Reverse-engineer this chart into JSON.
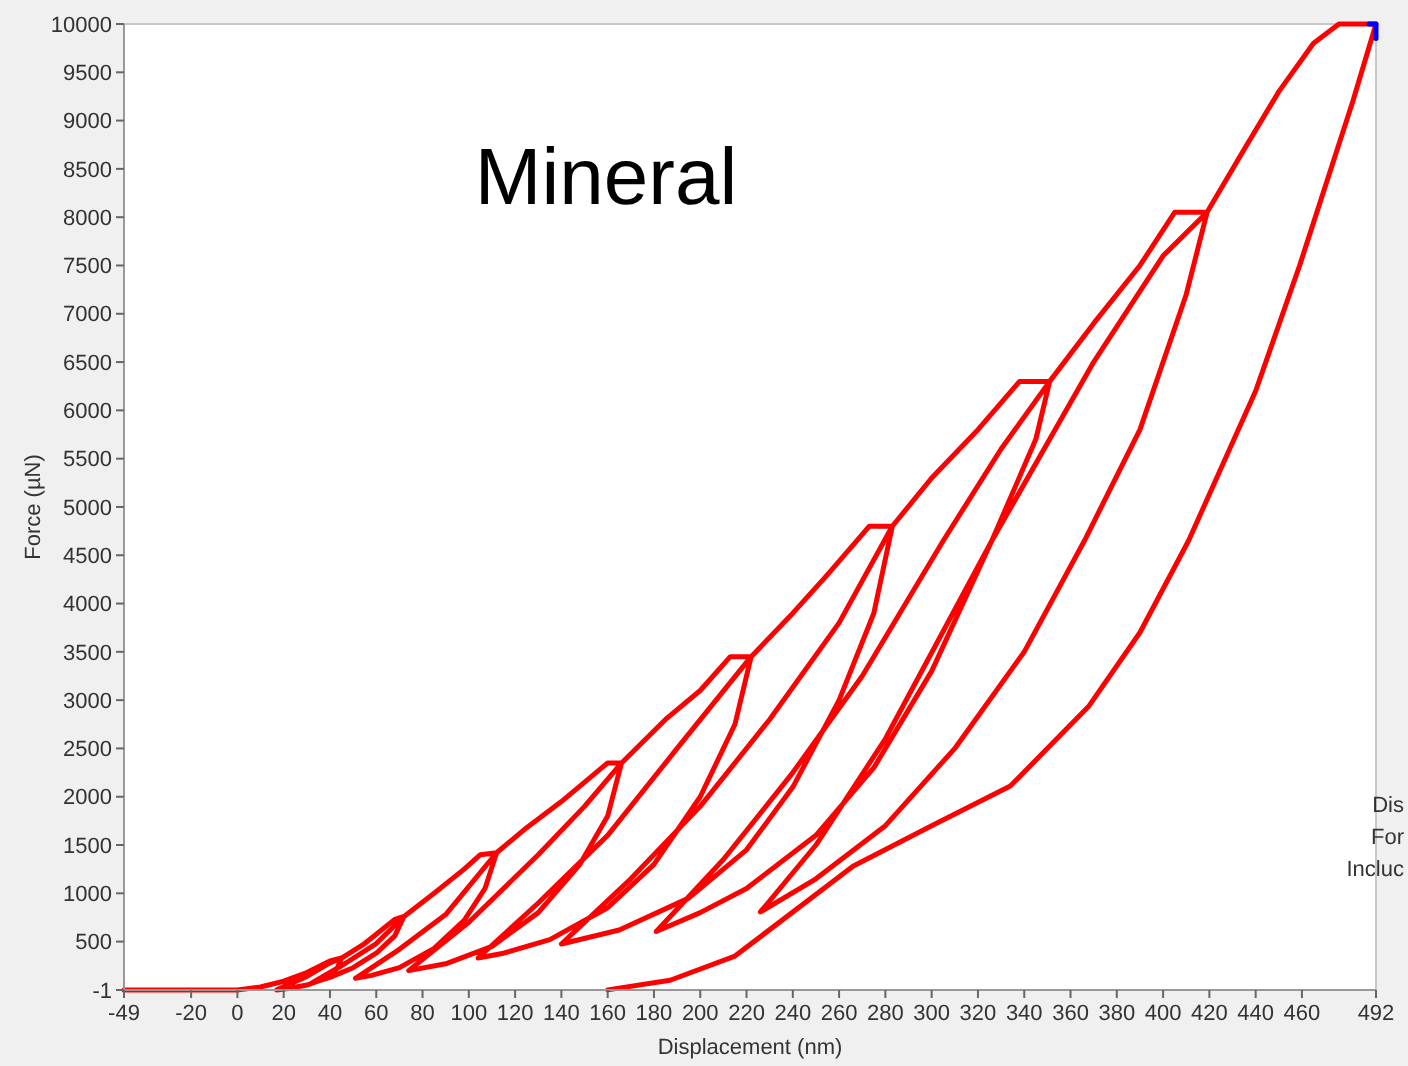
{
  "chart_data": {
    "type": "line",
    "title": "Mineral",
    "xlabel": "Displacement (nm)",
    "ylabel": "Force (µN)",
    "xlim": [
      -49,
      492
    ],
    "ylim": [
      -1,
      10000
    ],
    "xticks": [
      -49,
      -20,
      0,
      20,
      40,
      60,
      80,
      100,
      120,
      140,
      160,
      180,
      200,
      220,
      240,
      260,
      280,
      300,
      320,
      340,
      360,
      380,
      400,
      420,
      440,
      460,
      492
    ],
    "yticks": [
      -1,
      500,
      1000,
      1500,
      2000,
      2500,
      3000,
      3500,
      4000,
      4500,
      5000,
      5500,
      6000,
      6500,
      7000,
      7500,
      8000,
      8500,
      9000,
      9500,
      10000
    ],
    "grid": false,
    "marker": "none",
    "line_style": "solid",
    "annotations": [
      "Dis",
      "For",
      "Incluc"
    ],
    "series": [
      {
        "color": "#ff0000",
        "x": [
          -49,
          0,
          10,
          20,
          30,
          40,
          45,
          43,
          38,
          30,
          22,
          17,
          30,
          40,
          45,
          55,
          68,
          72,
          68,
          60,
          50,
          40,
          32,
          45,
          60,
          72,
          85,
          98,
          105,
          112,
          107,
          98,
          85,
          70,
          58,
          51,
          70,
          90,
          112,
          125,
          140,
          160,
          166,
          160,
          148,
          130,
          110,
          90,
          74,
          100,
          130,
          150,
          166,
          185,
          200,
          213,
          222,
          215,
          200,
          180,
          160,
          135,
          115,
          104,
          130,
          160,
          190,
          222,
          240,
          255,
          273,
          283,
          275,
          260,
          240,
          220,
          195,
          165,
          140,
          170,
          200,
          230,
          260,
          283,
          300,
          320,
          338,
          351,
          345,
          326,
          300,
          275,
          250,
          220,
          200,
          181,
          210,
          240,
          270,
          305,
          330,
          351,
          370,
          390,
          405,
          419,
          410,
          390,
          366,
          340,
          310,
          280,
          250,
          226,
          250,
          280,
          326,
          370,
          400,
          419,
          435,
          450,
          465,
          476,
          492,
          482,
          459,
          440,
          411,
          390,
          368,
          334,
          300,
          266,
          215,
          187,
          160
        ],
        "values": [
          0,
          0,
          30,
          90,
          180,
          300,
          330,
          220,
          120,
          50,
          15,
          0,
          140,
          280,
          330,
          480,
          730,
          760,
          560,
          380,
          230,
          130,
          70,
          250,
          480,
          760,
          1000,
          1250,
          1400,
          1420,
          1050,
          720,
          430,
          230,
          150,
          120,
          420,
          780,
          1420,
          1680,
          1950,
          2350,
          2350,
          1800,
          1300,
          800,
          450,
          270,
          200,
          700,
          1400,
          1900,
          2350,
          2800,
          3100,
          3450,
          3450,
          2750,
          2000,
          1300,
          850,
          520,
          380,
          330,
          900,
          1600,
          2500,
          3450,
          3900,
          4300,
          4800,
          4800,
          3900,
          3000,
          2100,
          1450,
          950,
          620,
          475,
          1150,
          1900,
          2800,
          3800,
          4800,
          5300,
          5800,
          6300,
          6300,
          5700,
          4650,
          3300,
          2300,
          1600,
          1050,
          800,
          605,
          1350,
          2250,
          3250,
          4650,
          5600,
          6300,
          6900,
          7500,
          8050,
          8050,
          7200,
          5800,
          4650,
          3500,
          2500,
          1700,
          1150,
          807,
          1500,
          2600,
          4650,
          6500,
          7600,
          8050,
          8700,
          9300,
          9800,
          10000,
          10000,
          9200,
          7500,
          6200,
          4650,
          3700,
          2940,
          2110,
          1700,
          1280,
          350,
          100,
          0
        ]
      },
      {
        "color": "#0000ff",
        "x": [
          489,
          492,
          492
        ],
        "values": [
          10000,
          10000,
          9850
        ]
      }
    ]
  }
}
